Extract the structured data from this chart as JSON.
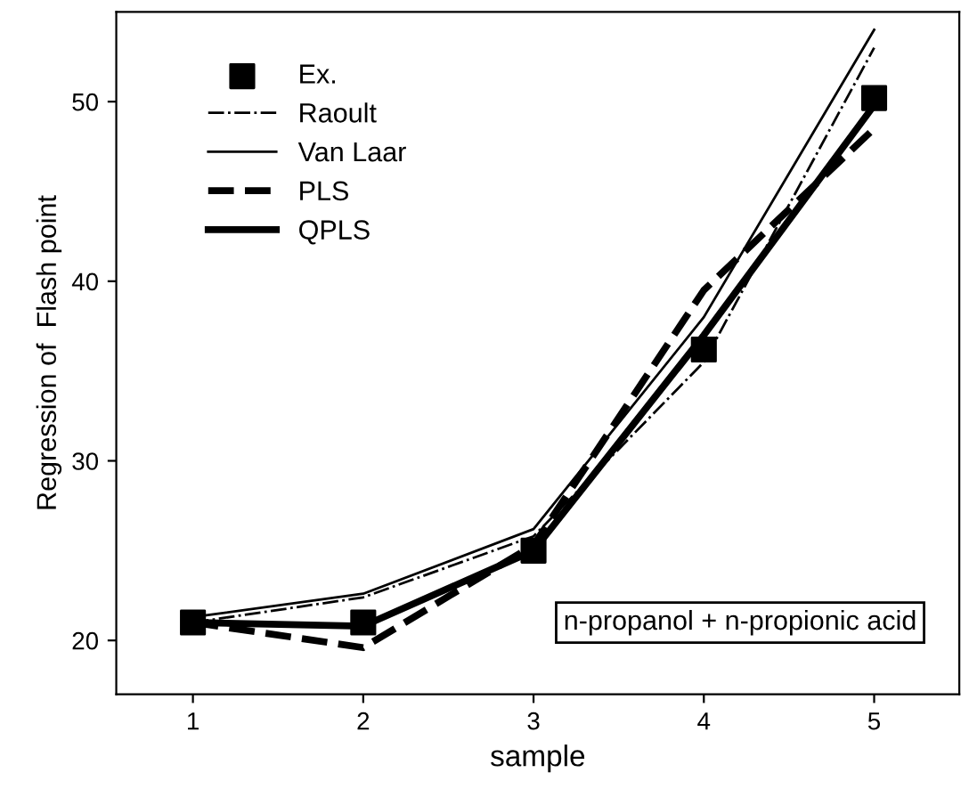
{
  "chart_data": {
    "type": "line",
    "xlabel": "sample",
    "ylabel": "Regression of  Flash point",
    "x": [
      1,
      2,
      3,
      4,
      5
    ],
    "series": [
      {
        "name": "Ex.",
        "type": "scatter",
        "color": "#000000",
        "marker": "square",
        "values": [
          21.0,
          21.0,
          25.0,
          36.2,
          50.2
        ]
      },
      {
        "name": "Raoult",
        "color": "#000000",
        "line_style": "dashdot",
        "values": [
          21.0,
          22.4,
          25.8,
          35.5,
          53.0
        ]
      },
      {
        "name": "Van Laar",
        "color": "#000000",
        "line_style": "solid",
        "values": [
          21.3,
          22.6,
          26.2,
          38.0,
          54.0
        ]
      },
      {
        "name": "PLS",
        "color": "#000000",
        "line_style": "dashed",
        "values": [
          21.0,
          19.6,
          25.3,
          39.5,
          48.5
        ]
      },
      {
        "name": "QPLS",
        "color": "#000000",
        "line_style": "solid",
        "values": [
          21.0,
          20.8,
          25.0,
          37.0,
          49.8
        ]
      }
    ],
    "xlim": [
      0.55,
      5.5
    ],
    "ylim": [
      17,
      55
    ],
    "xticks": [
      1,
      2,
      3,
      4,
      5
    ],
    "yticks": [
      20,
      30,
      40,
      50
    ],
    "annotations": [
      "n-propanol + n-propionic acid"
    ],
    "legend": "top left",
    "grid": false
  }
}
